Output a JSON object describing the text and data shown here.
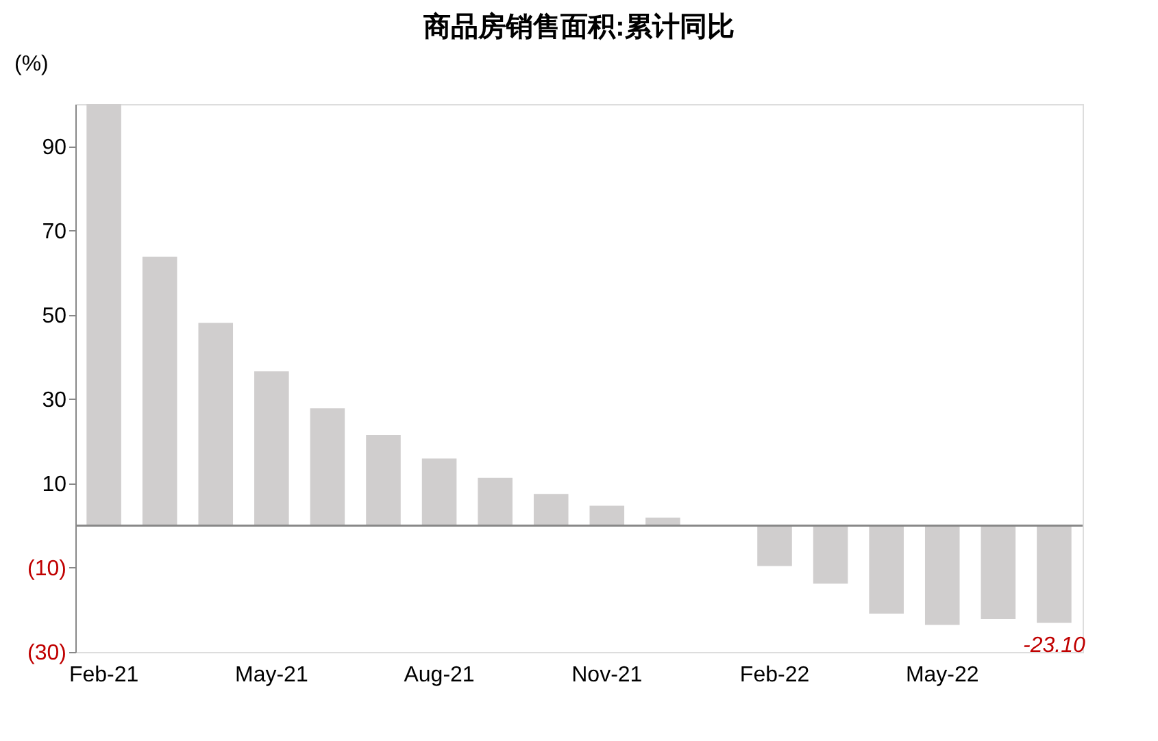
{
  "chart_data": {
    "type": "bar",
    "title": "商品房销售面积:累计同比",
    "ylabel": "(%)",
    "categories": [
      "Feb-21",
      null,
      null,
      "May-21",
      null,
      null,
      "Aug-21",
      null,
      null,
      "Nov-21",
      null,
      null,
      "Feb-22",
      null,
      null,
      "May-22",
      null,
      null
    ],
    "values": [
      100,
      63.8,
      48.1,
      36.6,
      27.8,
      21.5,
      15.9,
      11.3,
      7.5,
      4.7,
      1.9,
      null,
      -9.6,
      -13.8,
      -20.9,
      -23.6,
      -22.2,
      -23.1
    ],
    "value_labels": [
      null,
      null,
      null,
      null,
      null,
      null,
      null,
      null,
      null,
      null,
      null,
      null,
      null,
      null,
      null,
      null,
      null,
      "-23.10"
    ],
    "color": "#d0cece",
    "ylim": [
      -30,
      100
    ],
    "yticks": [
      {
        "value": -30,
        "label": "(30)"
      },
      {
        "value": -10,
        "label": "(10)"
      },
      10,
      30,
      50,
      70,
      90
    ],
    "grid": false
  }
}
